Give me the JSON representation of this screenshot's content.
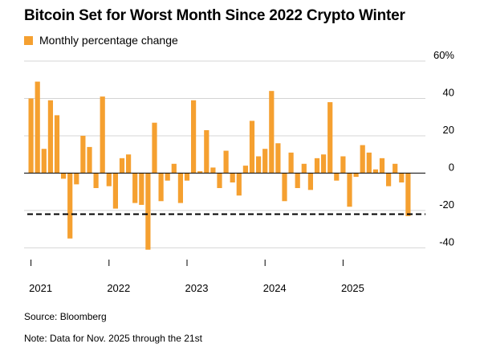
{
  "title": "Bitcoin Set for Worst Month Since 2022 Crypto Winter",
  "legend": {
    "label": "Monthly percentage change",
    "color": "#f5a030"
  },
  "footer": {
    "source": "Source: Bloomberg",
    "note": "Note: Data for Nov. 2025 through the 21st"
  },
  "chart_data": {
    "type": "bar",
    "title": "Bitcoin Set for Worst Month Since 2022 Crypto Winter",
    "subtitle": "Monthly percentage change",
    "y_unit": "%",
    "ylim": [
      -45,
      60
    ],
    "y_ticks": [
      {
        "value": 60,
        "label": "60%"
      },
      {
        "value": 40,
        "label": "40"
      },
      {
        "value": 20,
        "label": "20"
      },
      {
        "value": 0,
        "label": "0"
      },
      {
        "value": -20,
        "label": "-20"
      },
      {
        "value": -40,
        "label": "-40"
      }
    ],
    "x_ticks": [
      "2021",
      "2022",
      "2023",
      "2024",
      "2025"
    ],
    "bar_color": "#f5a030",
    "reference_line": {
      "value": -22,
      "style": "dashed"
    },
    "categories": [
      "2021-01",
      "2021-02",
      "2021-03",
      "2021-04",
      "2021-05",
      "2021-06",
      "2021-07",
      "2021-08",
      "2021-09",
      "2021-10",
      "2021-11",
      "2021-12",
      "2022-01",
      "2022-02",
      "2022-03",
      "2022-04",
      "2022-05",
      "2022-06",
      "2022-07",
      "2022-08",
      "2022-09",
      "2022-10",
      "2022-11",
      "2022-12",
      "2023-01",
      "2023-02",
      "2023-03",
      "2023-04",
      "2023-05",
      "2023-06",
      "2023-07",
      "2023-08",
      "2023-09",
      "2023-10",
      "2023-11",
      "2023-12",
      "2024-01",
      "2024-02",
      "2024-03",
      "2024-04",
      "2024-05",
      "2024-06",
      "2024-07",
      "2024-08",
      "2024-09",
      "2024-10",
      "2024-11",
      "2024-12",
      "2025-01",
      "2025-02",
      "2025-03",
      "2025-04",
      "2025-05",
      "2025-06",
      "2025-07",
      "2025-08",
      "2025-09",
      "2025-10",
      "2025-11"
    ],
    "values": [
      40,
      49,
      13,
      39,
      31,
      -3,
      -35,
      -6,
      20,
      14,
      -8,
      41,
      -7,
      -19,
      8,
      10,
      -16,
      -17,
      -41,
      27,
      -15,
      -4,
      5,
      -16,
      -4,
      39,
      1,
      23,
      3,
      -8,
      12,
      -5,
      -12,
      4,
      28,
      9,
      13,
      44,
      16,
      -15,
      11,
      -8,
      5,
      -9,
      8,
      10,
      38,
      -4,
      9,
      -18,
      -2,
      15,
      11,
      2,
      8,
      -7,
      5,
      -5,
      -23
    ]
  }
}
